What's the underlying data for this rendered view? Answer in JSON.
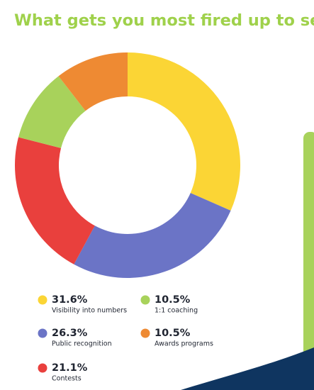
{
  "chart_data": {
    "type": "donut",
    "title": "What gets you most fired up to sell?",
    "categories": [
      "Visibility into numbers",
      "Public recognition",
      "Contests",
      "1:1 coaching",
      "Awards programs"
    ],
    "values": [
      31.6,
      26.3,
      21.1,
      10.5,
      10.5
    ],
    "value_labels": [
      "31.6%",
      "26.3%",
      "21.1%",
      "10.5%",
      "10.5%"
    ],
    "colors": [
      "#fbd535",
      "#6b74c6",
      "#e9403d",
      "#a8d25b",
      "#ee8a33"
    ]
  }
}
